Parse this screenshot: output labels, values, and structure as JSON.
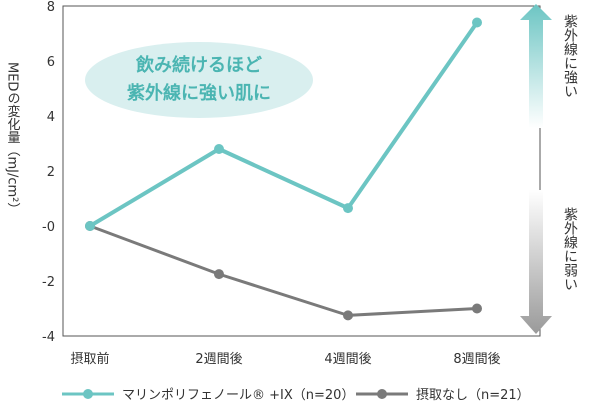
{
  "chart_data": {
    "type": "line",
    "categories": [
      "摂取前",
      "2週間後",
      "4週間後",
      "8週間後"
    ],
    "ylabel": "MEDの変化量（mJ/cm²）",
    "ylim": [
      -4,
      8
    ],
    "yticks": [
      "-4",
      "-2",
      "-0",
      "2",
      "4",
      "6",
      "8"
    ],
    "grid": false,
    "legend_position": "bottom",
    "series": [
      {
        "name": "マリンポリフェノール® +IX（n=20）",
        "color": "#6cc5c3",
        "values": [
          0,
          2.8,
          0.65,
          7.4
        ]
      },
      {
        "name": "摂取なし（n=21）",
        "color": "#7a7a7a",
        "values": [
          0,
          -1.75,
          -3.25,
          -3.0
        ]
      }
    ],
    "annotations": {
      "bubble_line1": "飲み続けるほど",
      "bubble_line2": "紫外線に強い肌に",
      "strong_label": "紫外線に強い",
      "weak_label": "紫外線に弱い"
    }
  }
}
